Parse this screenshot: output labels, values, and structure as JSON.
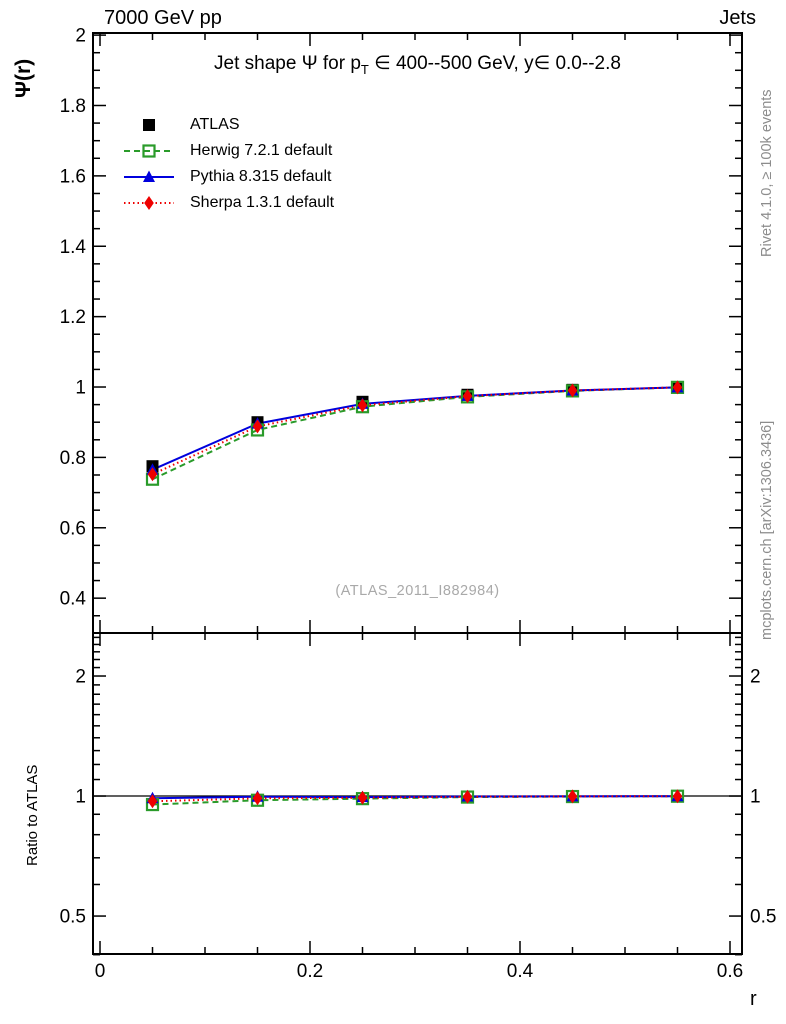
{
  "header": {
    "left": "7000 GeV pp",
    "right": "Jets"
  },
  "title": {
    "pre": "Jet shape Ψ for p",
    "sub": "T",
    "post": " ∈ 400--500 GeV, y∈ 0.0--2.8"
  },
  "watermark": "(ATLAS_2011_I882984)",
  "captions": {
    "rivet": "Rivet 4.1.0, ≥ 100k events",
    "mcplots": "mcplots.cern.ch [arXiv:1306.3436]"
  },
  "axes": {
    "x": {
      "label": "r"
    },
    "main": {
      "ylabel": "Ψ(r)"
    },
    "ratio": {
      "ylabel": "Ratio to ATLAS"
    }
  },
  "colors": {
    "atlas": "#000000",
    "herwig": "#2a9b2a",
    "pythia": "#0000dd",
    "sherpa": "#ee0000",
    "frame": "#000000",
    "watermark": "#a9a9a9",
    "caption": "#8c8c8c"
  },
  "chart_data": {
    "type": "line",
    "title_plain": "Jet shape Ψ for pT ∈ 400--500 GeV, y∈ 0.0--2.8",
    "xlabel": "r",
    "ylabel_main": "Ψ(r)",
    "ylabel_ratio": "Ratio to ATLAS",
    "x": [
      0.05,
      0.15,
      0.25,
      0.35,
      0.45,
      0.55
    ],
    "x_range": [
      -0.00667,
      0.61143
    ],
    "main": {
      "y_range": [
        0.301,
        2.006
      ],
      "scale": "linear",
      "yticks_major": [
        {
          "v": 0.4,
          "label": "0.4"
        },
        {
          "v": 0.6,
          "label": "0.6"
        },
        {
          "v": 0.8,
          "label": "0.8"
        },
        {
          "v": 1.0,
          "label": "1"
        },
        {
          "v": 1.2,
          "label": "1.2"
        },
        {
          "v": 1.4,
          "label": "1.4"
        },
        {
          "v": 1.6,
          "label": "1.6"
        },
        {
          "v": 1.8,
          "label": "1.8"
        },
        {
          "v": 2.0,
          "label": "2"
        }
      ],
      "yticks_minor_spec": {
        "start": 0.35,
        "end": 2.0,
        "step": 0.05
      }
    },
    "ratio": {
      "y_range": [
        0.4016,
        2.564
      ],
      "scale": "log",
      "reference_line": 1.0,
      "yticks_major": [
        {
          "v": 0.5,
          "label": "0.5"
        },
        {
          "v": 1.0,
          "label": "1"
        },
        {
          "v": 2.0,
          "label": "2"
        }
      ],
      "yticks_minor": [
        0.4,
        0.6,
        0.7,
        0.8,
        0.9,
        1.1,
        1.2,
        1.3,
        1.4,
        1.5,
        1.6,
        1.7,
        1.8,
        1.9,
        2.1,
        2.2,
        2.3,
        2.4,
        2.5
      ]
    },
    "xticks_major": [
      {
        "v": 0.0,
        "label": "0"
      },
      {
        "v": 0.2,
        "label": "0.2"
      },
      {
        "v": 0.4,
        "label": "0.4"
      },
      {
        "v": 0.6,
        "label": "0.6"
      }
    ],
    "xticks_minor": [
      0.05,
      0.1,
      0.15,
      0.25,
      0.3,
      0.35,
      0.45,
      0.5,
      0.55
    ],
    "series": [
      {
        "name": "ATLAS",
        "color": "#000000",
        "marker": "square",
        "line_dash": null,
        "psi": [
          0.775,
          0.9,
          0.958,
          0.978,
          0.992,
          1.0
        ],
        "ratio": null
      },
      {
        "name": "Herwig 7.2.1 default",
        "color": "#2a9b2a",
        "marker": "opensquare",
        "line_dash": "6,4",
        "psi": [
          0.738,
          0.878,
          0.944,
          0.972,
          0.989,
          0.999
        ],
        "ratio": [
          0.952,
          0.976,
          0.985,
          0.994,
          0.997,
          0.999
        ]
      },
      {
        "name": "Pythia 8.315 default",
        "color": "#0000dd",
        "marker": "triangle",
        "line_dash": "",
        "psi": [
          0.765,
          0.896,
          0.952,
          0.975,
          0.99,
          0.999
        ],
        "ratio": [
          0.987,
          0.996,
          0.994,
          0.997,
          0.998,
          0.999
        ]
      },
      {
        "name": "Sherpa 1.3.1 default",
        "color": "#ee0000",
        "marker": "diamond",
        "line_dash": "1.5,3",
        "psi": [
          0.752,
          0.888,
          0.948,
          0.974,
          0.99,
          0.999
        ],
        "ratio": [
          0.97,
          0.987,
          0.99,
          0.996,
          0.998,
          0.999
        ]
      }
    ],
    "legend_position": "top-left"
  }
}
